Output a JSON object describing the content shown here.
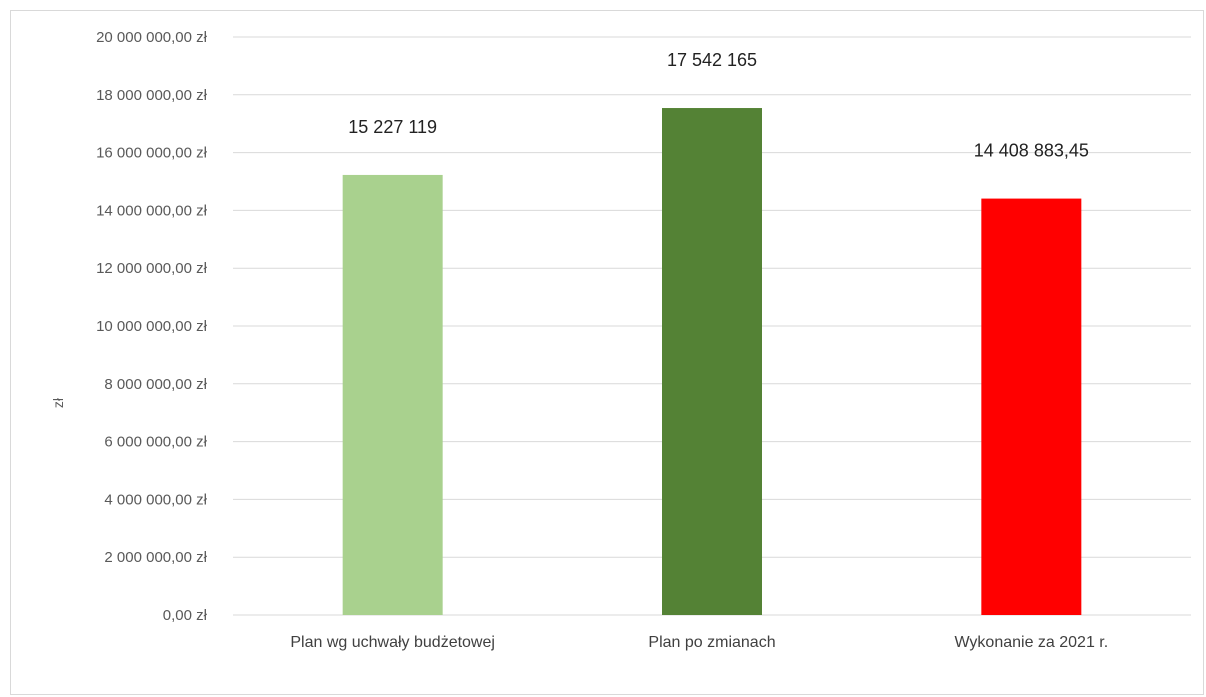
{
  "chart_data": {
    "type": "bar",
    "categories": [
      "Plan wg uchwały budżetowej",
      "Plan po zmianach",
      "Wykonanie za 2021 r."
    ],
    "values": [
      15227119,
      17542165,
      14408883.45
    ],
    "data_labels": [
      "15 227 119",
      "17 542 165",
      "14 408 883,45"
    ],
    "colors": [
      "#a9d18e",
      "#548235",
      "#ff0000"
    ],
    "ylabel": "zł",
    "ylim": [
      0,
      20000000
    ],
    "y_ticks": [
      0,
      2000000,
      4000000,
      6000000,
      8000000,
      10000000,
      12000000,
      14000000,
      16000000,
      18000000,
      20000000
    ],
    "y_tick_labels": [
      "0,00 zł",
      "2 000 000,00 zł",
      "4 000 000,00 zł",
      "6 000 000,00 zł",
      "8 000 000,00 zł",
      "10 000 000,00 zł",
      "12 000 000,00 zł",
      "14 000 000,00 zł",
      "16 000 000,00 zł",
      "18 000 000,00 zł",
      "20 000 000,00 zł"
    ],
    "grid": true,
    "gridline_color": "#d9d9d9",
    "legend": "none"
  }
}
